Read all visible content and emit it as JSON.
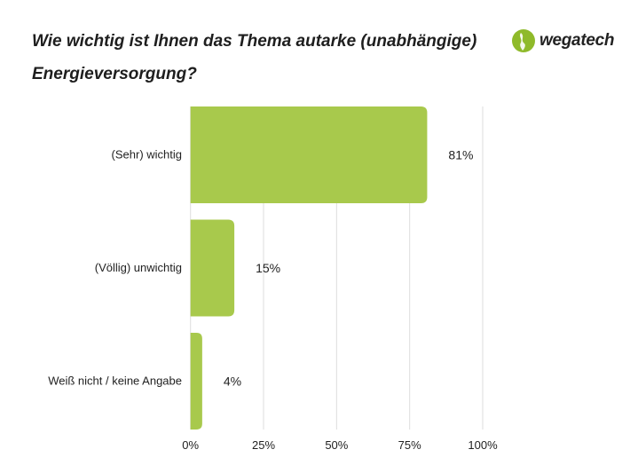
{
  "title": "Wie wichtig ist Ihnen das Thema autarke (unabhängige) Energieversorgung?",
  "logo": {
    "text": "wegatech",
    "color": "#8fba2a"
  },
  "chart_data": {
    "type": "bar",
    "orientation": "horizontal",
    "categories": [
      "(Sehr) wichtig",
      "(Völlig) unwichtig",
      "Weiß nicht / keine Angabe"
    ],
    "values": [
      81,
      15,
      4
    ],
    "value_labels": [
      "81%",
      "15%",
      "4%"
    ],
    "xlim": [
      0,
      100
    ],
    "xticks": [
      0,
      25,
      50,
      75,
      100
    ],
    "xtick_labels": [
      "0%",
      "25%",
      "50%",
      "75%",
      "100%"
    ],
    "grid": "vertical",
    "bar_color": "#a8c94c",
    "grid_color": "#dddddd",
    "xlabel": "",
    "ylabel": ""
  }
}
